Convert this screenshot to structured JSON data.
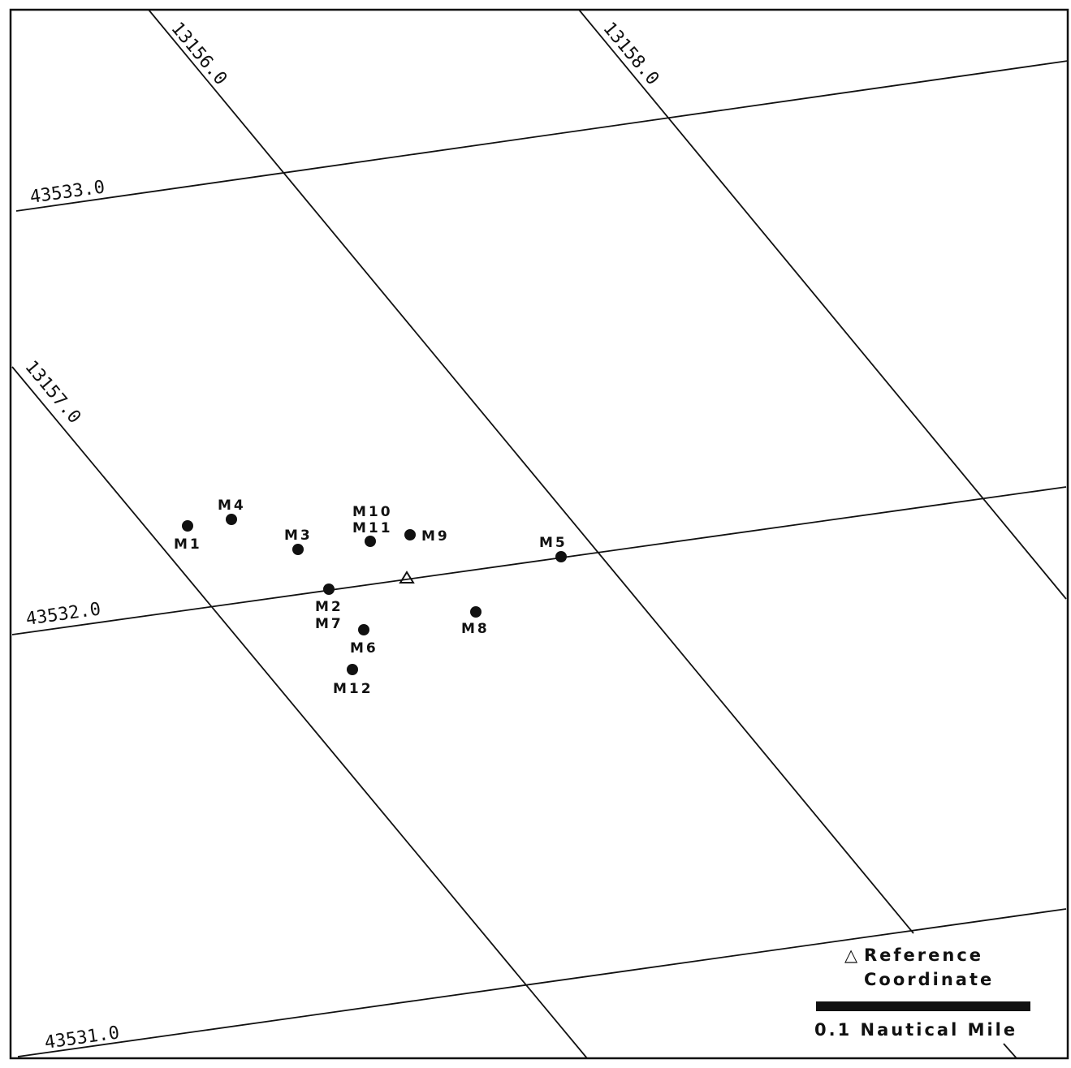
{
  "grid": {
    "lines_a": [
      {
        "label": "13156.0"
      },
      {
        "label": "13157.0"
      },
      {
        "label": "13158.0"
      }
    ],
    "lines_b": [
      {
        "label": "43533.0"
      },
      {
        "label": "43532.0"
      },
      {
        "label": "43531.0"
      }
    ]
  },
  "stations": [
    {
      "id": "m1",
      "label": "M1"
    },
    {
      "id": "m4",
      "label": "M4"
    },
    {
      "id": "m3",
      "label": "M3"
    },
    {
      "id": "m10-m11",
      "label": "M10",
      "label2": "M11"
    },
    {
      "id": "m9",
      "label": "M9"
    },
    {
      "id": "m5",
      "label": "M5"
    },
    {
      "id": "m2-m7",
      "label": "M2",
      "label2": "M7"
    },
    {
      "id": "m6",
      "label": "M6"
    },
    {
      "id": "m8",
      "label": "M8"
    },
    {
      "id": "m12",
      "label": "M12"
    }
  ],
  "legend": {
    "reference_symbol": "△",
    "reference_line1": "Reference",
    "reference_line2": "Coordinate",
    "scale_label": "0.1 Nautical Mile"
  }
}
